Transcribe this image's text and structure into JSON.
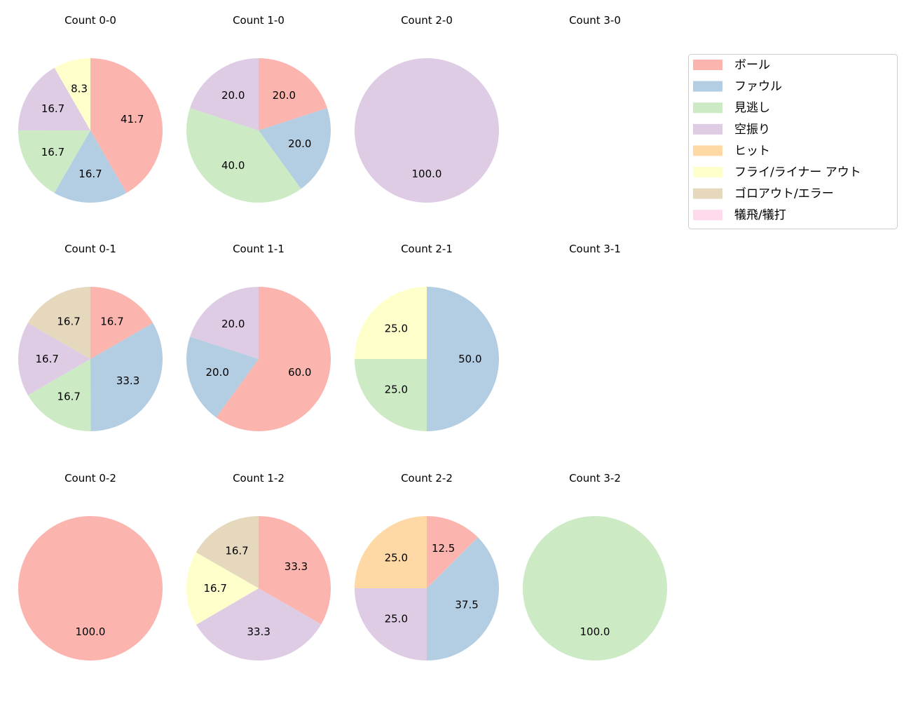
{
  "chart_data": [
    {
      "type": "pie",
      "title": "Count 0-0",
      "slices": [
        {
          "category": "ボール",
          "value": 41.7
        },
        {
          "category": "ファウル",
          "value": 16.7
        },
        {
          "category": "見逃し",
          "value": 16.7
        },
        {
          "category": "空振り",
          "value": 16.7
        },
        {
          "category": "フライ/ライナー アウト",
          "value": 8.3
        }
      ]
    },
    {
      "type": "pie",
      "title": "Count 1-0",
      "slices": [
        {
          "category": "ボール",
          "value": 20.0
        },
        {
          "category": "ファウル",
          "value": 20.0
        },
        {
          "category": "見逃し",
          "value": 40.0
        },
        {
          "category": "空振り",
          "value": 20.0
        }
      ]
    },
    {
      "type": "pie",
      "title": "Count 2-0",
      "slices": [
        {
          "category": "空振り",
          "value": 100.0
        }
      ]
    },
    {
      "type": "pie",
      "title": "Count 3-0",
      "slices": []
    },
    {
      "type": "pie",
      "title": "Count 0-1",
      "slices": [
        {
          "category": "ボール",
          "value": 16.7
        },
        {
          "category": "ファウル",
          "value": 33.3
        },
        {
          "category": "見逃し",
          "value": 16.7
        },
        {
          "category": "空振り",
          "value": 16.7
        },
        {
          "category": "ゴロアウト/エラー",
          "value": 16.7
        }
      ]
    },
    {
      "type": "pie",
      "title": "Count 1-1",
      "slices": [
        {
          "category": "ボール",
          "value": 60.0
        },
        {
          "category": "ファウル",
          "value": 20.0
        },
        {
          "category": "空振り",
          "value": 20.0
        }
      ]
    },
    {
      "type": "pie",
      "title": "Count 2-1",
      "slices": [
        {
          "category": "ファウル",
          "value": 50.0
        },
        {
          "category": "見逃し",
          "value": 25.0
        },
        {
          "category": "フライ/ライナー アウト",
          "value": 25.0
        }
      ]
    },
    {
      "type": "pie",
      "title": "Count 3-1",
      "slices": []
    },
    {
      "type": "pie",
      "title": "Count 0-2",
      "slices": [
        {
          "category": "ボール",
          "value": 100.0
        }
      ]
    },
    {
      "type": "pie",
      "title": "Count 1-2",
      "slices": [
        {
          "category": "ボール",
          "value": 33.3
        },
        {
          "category": "空振り",
          "value": 33.3
        },
        {
          "category": "フライ/ライナー アウト",
          "value": 16.7
        },
        {
          "category": "ゴロアウト/エラー",
          "value": 16.7
        }
      ]
    },
    {
      "type": "pie",
      "title": "Count 2-2",
      "slices": [
        {
          "category": "ボール",
          "value": 12.5
        },
        {
          "category": "ファウル",
          "value": 37.5
        },
        {
          "category": "空振り",
          "value": 25.0
        },
        {
          "category": "ヒット",
          "value": 25.0
        }
      ]
    },
    {
      "type": "pie",
      "title": "Count 3-2",
      "slices": [
        {
          "category": "見逃し",
          "value": 100.0
        }
      ]
    }
  ],
  "legend": {
    "placement": "right",
    "items": [
      {
        "label": "ボール",
        "color": "#fbb4ae"
      },
      {
        "label": "ファウル",
        "color": "#b3cde3"
      },
      {
        "label": "見逃し",
        "color": "#ccebc5"
      },
      {
        "label": "空振り",
        "color": "#decbe4"
      },
      {
        "label": "ヒット",
        "color": "#fed9a6"
      },
      {
        "label": "フライ/ライナー アウト",
        "color": "#ffffcc"
      },
      {
        "label": "ゴロアウト/エラー",
        "color": "#e5d8bd"
      },
      {
        "label": "犠飛/犠打",
        "color": "#fddaec"
      }
    ]
  }
}
